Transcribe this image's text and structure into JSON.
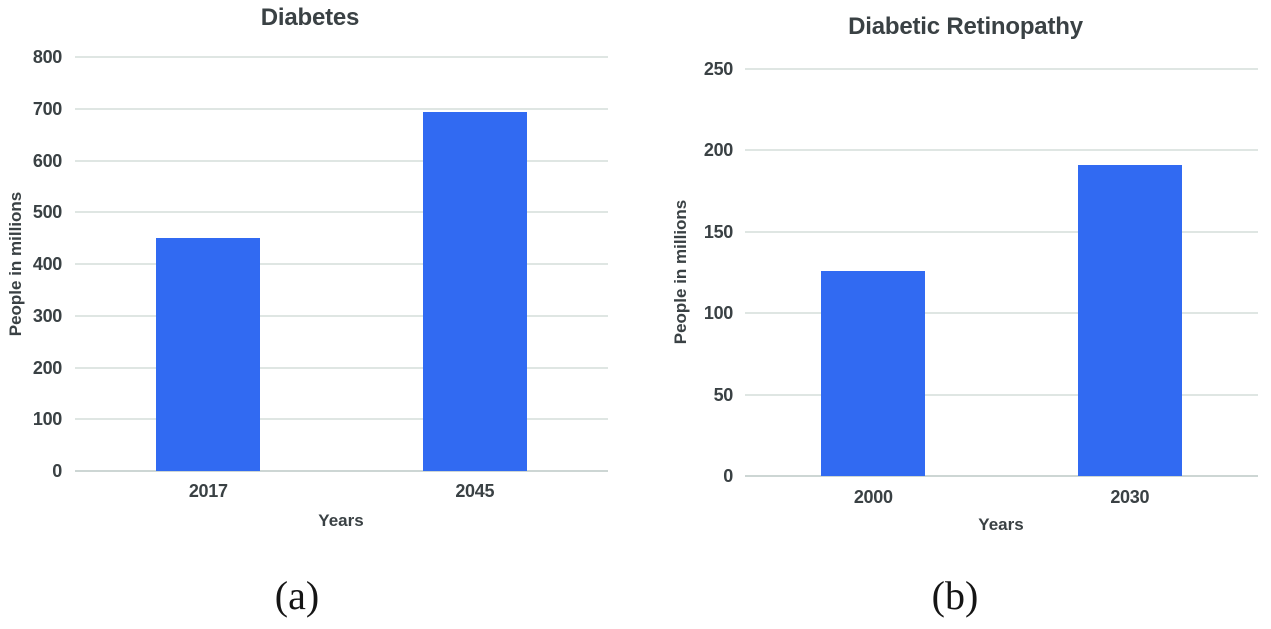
{
  "figure": {
    "description": "Two side-by-side vertical bar charts comparing projected growth",
    "background": "#ffffff"
  },
  "colors": {
    "bar": "#316af2",
    "gridline": "#dfe6e3",
    "zero_line": "#cdd6d4",
    "text": "#3a4144",
    "caption_text": "#151515"
  },
  "chart_data": [
    {
      "type": "bar",
      "title": "Diabetes",
      "caption": "(a)",
      "categories": [
        "2017",
        "2045"
      ],
      "values": [
        450,
        693
      ],
      "xlabel": "Years",
      "ylabel": "People in millions",
      "ylim": [
        0,
        800
      ],
      "yticks": [
        0,
        100,
        200,
        300,
        400,
        500,
        600,
        700,
        800
      ],
      "grid": true,
      "legend": "none"
    },
    {
      "type": "bar",
      "title": "Diabetic Retinopathy",
      "caption": "(b)",
      "categories": [
        "2000",
        "2030"
      ],
      "values": [
        126,
        191
      ],
      "xlabel": "Years",
      "ylabel": "People in millions",
      "ylim": [
        0,
        250
      ],
      "yticks": [
        0,
        50,
        100,
        150,
        200,
        250
      ],
      "grid": true,
      "legend": "none"
    }
  ]
}
